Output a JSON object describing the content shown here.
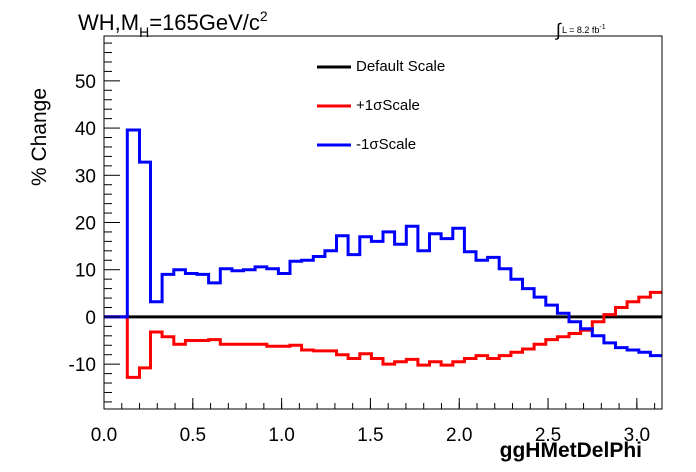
{
  "header": {
    "title_main": "WH,M",
    "title_sub": "H",
    "title_rest": "=165GeV/c",
    "title_sup": "2",
    "lumi_integral": "∫",
    "lumi_text": "L = 8.2 fb",
    "lumi_sup": "-1"
  },
  "colors": {
    "default": "#000000",
    "plus": "#ff0000",
    "minus": "#0000ff",
    "axis": "#000000"
  },
  "chart_data": {
    "type": "line",
    "style": "step-histogram",
    "title": "WH,MH=165GeV/c2",
    "xlabel": "ggHMetDelPhi",
    "ylabel": "% Change",
    "xlim": [
      0,
      3.1416
    ],
    "ylim": [
      -19.5,
      59.5
    ],
    "xticks": [
      "0.0",
      "0.5",
      "1.0",
      "1.5",
      "2.0",
      "2.5",
      "3.0"
    ],
    "xtick_values": [
      0,
      0.5,
      1.0,
      1.5,
      2.0,
      2.5,
      3.0
    ],
    "yticks": [
      "-10",
      "0",
      "10",
      "20",
      "30",
      "40",
      "50"
    ],
    "ytick_values": [
      -10,
      0,
      10,
      20,
      30,
      40,
      50
    ],
    "grid": false,
    "legend_position": "top-center",
    "bin_edges": [
      0,
      0.1309,
      0.2,
      0.2618,
      0.3272,
      0.3927,
      0.4581,
      0.5236,
      0.589,
      0.6545,
      0.7199,
      0.7854,
      0.8508,
      0.9163,
      0.9817,
      1.0472,
      1.1126,
      1.1781,
      1.2435,
      1.309,
      1.3744,
      1.4399,
      1.5053,
      1.5708,
      1.6362,
      1.7017,
      1.7671,
      1.8326,
      1.898,
      1.9635,
      2.0289,
      2.0944,
      2.1598,
      2.2253,
      2.2907,
      2.3562,
      2.4216,
      2.4871,
      2.5525,
      2.618,
      2.6834,
      2.7489,
      2.8143,
      2.8798,
      2.9452,
      3.0107,
      3.0761,
      3.1416
    ],
    "series": [
      {
        "name": "Default Scale",
        "color": "#000000",
        "values": [
          0,
          0,
          0,
          0,
          0,
          0,
          0,
          0,
          0,
          0,
          0,
          0,
          0,
          0,
          0,
          0,
          0,
          0,
          0,
          0,
          0,
          0,
          0,
          0,
          0,
          0,
          0,
          0,
          0,
          0,
          0,
          0,
          0,
          0,
          0,
          0,
          0,
          0,
          0,
          0,
          0,
          0,
          0,
          0,
          0,
          0,
          0
        ]
      },
      {
        "name": "+1σScale",
        "color": "#ff0000",
        "values": [
          0,
          -12.8,
          -10.8,
          -3.2,
          -4.2,
          -5.8,
          -5.0,
          -5.0,
          -4.8,
          -5.8,
          -5.8,
          -5.8,
          -5.8,
          -6.2,
          -6.2,
          -6.0,
          -7.0,
          -7.2,
          -7.2,
          -8.0,
          -8.8,
          -7.8,
          -8.8,
          -10.0,
          -9.5,
          -9.0,
          -10.2,
          -9.5,
          -10.2,
          -9.5,
          -8.8,
          -8.2,
          -8.8,
          -8.2,
          -7.5,
          -6.8,
          -5.8,
          -4.8,
          -4.2,
          -3.5,
          -2.8,
          -1.0,
          0.5,
          2.0,
          3.2,
          4.2,
          5.2
        ]
      },
      {
        "name": "-1σScale",
        "color": "#0000ff",
        "values": [
          0,
          39.6,
          32.8,
          3.2,
          9.0,
          10.0,
          9.2,
          9.0,
          7.2,
          10.2,
          9.8,
          10.0,
          10.6,
          10.2,
          9.2,
          11.8,
          12.0,
          12.8,
          14.0,
          17.2,
          13.2,
          17.0,
          16.0,
          18.0,
          15.4,
          19.2,
          14.0,
          17.6,
          16.6,
          18.8,
          13.8,
          12.0,
          12.6,
          10.2,
          8.0,
          6.0,
          4.2,
          2.5,
          0.8,
          -1.0,
          -2.5,
          -4.0,
          -5.5,
          -6.5,
          -7.0,
          -7.5,
          -8.2
        ]
      }
    ]
  }
}
